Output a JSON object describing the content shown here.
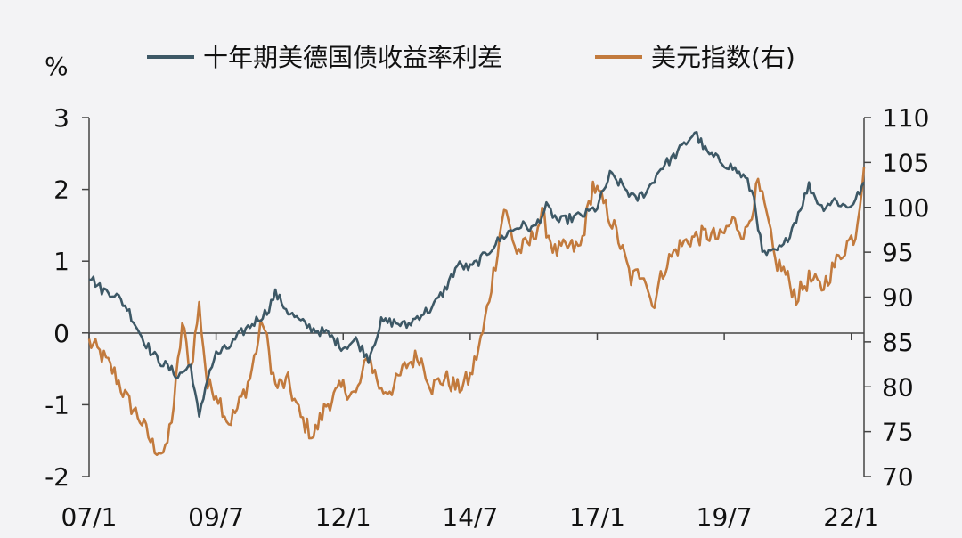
{
  "chart_data": {
    "type": "line",
    "unit_label": "%",
    "legend": "top",
    "grid": false,
    "x_ticks": [
      "07/1",
      "09/7",
      "12/1",
      "14/7",
      "17/1",
      "19/7",
      "22/1"
    ],
    "y_left_ticks": [
      "3",
      "2",
      "1",
      "0",
      "-1",
      "-2"
    ],
    "y_left_lim": [
      -2,
      3
    ],
    "y_right_ticks": [
      "110",
      "105",
      "100",
      "95",
      "90",
      "85",
      "80",
      "75",
      "70"
    ],
    "y_right_lim": [
      70,
      110
    ],
    "x_range": [
      "2007-01",
      "2022-04"
    ],
    "series": [
      {
        "name": "十年期美德国债收益率利差",
        "axis": "left",
        "color": "#3d5866",
        "points": [
          [
            "2007-01",
            0.8
          ],
          [
            "2007-04",
            0.6
          ],
          [
            "2007-07",
            0.55
          ],
          [
            "2007-10",
            0.35
          ],
          [
            "2008-01",
            0.0
          ],
          [
            "2008-04",
            -0.3
          ],
          [
            "2008-07",
            -0.45
          ],
          [
            "2008-10",
            -0.6
          ],
          [
            "2009-01",
            -0.45
          ],
          [
            "2009-03",
            -1.2
          ],
          [
            "2009-05",
            -0.6
          ],
          [
            "2009-07",
            -0.3
          ],
          [
            "2009-10",
            -0.2
          ],
          [
            "2010-01",
            0.0
          ],
          [
            "2010-04",
            0.15
          ],
          [
            "2010-07",
            0.3
          ],
          [
            "2010-09",
            0.55
          ],
          [
            "2010-12",
            0.3
          ],
          [
            "2011-03",
            0.15
          ],
          [
            "2011-06",
            0.05
          ],
          [
            "2011-09",
            0.0
          ],
          [
            "2012-01",
            -0.2
          ],
          [
            "2012-04",
            -0.1
          ],
          [
            "2012-07",
            -0.35
          ],
          [
            "2012-10",
            0.15
          ],
          [
            "2013-01",
            0.15
          ],
          [
            "2013-04",
            0.1
          ],
          [
            "2013-07",
            0.25
          ],
          [
            "2013-10",
            0.35
          ],
          [
            "2014-01",
            0.6
          ],
          [
            "2014-04",
            0.95
          ],
          [
            "2014-07",
            0.9
          ],
          [
            "2014-10",
            1.05
          ],
          [
            "2015-01",
            1.25
          ],
          [
            "2015-04",
            1.4
          ],
          [
            "2015-07",
            1.5
          ],
          [
            "2015-10",
            1.45
          ],
          [
            "2016-01",
            1.75
          ],
          [
            "2016-04",
            1.55
          ],
          [
            "2016-07",
            1.6
          ],
          [
            "2016-10",
            1.65
          ],
          [
            "2017-01",
            1.75
          ],
          [
            "2017-04",
            2.2
          ],
          [
            "2017-07",
            2.05
          ],
          [
            "2017-10",
            1.85
          ],
          [
            "2018-01",
            2.0
          ],
          [
            "2018-04",
            2.3
          ],
          [
            "2018-07",
            2.45
          ],
          [
            "2018-10",
            2.65
          ],
          [
            "2018-12",
            2.8
          ],
          [
            "2019-03",
            2.5
          ],
          [
            "2019-06",
            2.4
          ],
          [
            "2019-09",
            2.3
          ],
          [
            "2019-12",
            2.15
          ],
          [
            "2020-02",
            1.9
          ],
          [
            "2020-04",
            1.1
          ],
          [
            "2020-06",
            1.1
          ],
          [
            "2020-09",
            1.2
          ],
          [
            "2020-12",
            1.6
          ],
          [
            "2021-03",
            2.05
          ],
          [
            "2021-06",
            1.75
          ],
          [
            "2021-09",
            1.85
          ],
          [
            "2021-12",
            1.75
          ],
          [
            "2022-02",
            1.85
          ],
          [
            "2022-04",
            2.1
          ]
        ]
      },
      {
        "name": "美元指数(右)",
        "axis": "right",
        "color": "#c27a3d",
        "points": [
          [
            "2007-01",
            85
          ],
          [
            "2007-04",
            83.5
          ],
          [
            "2007-07",
            81.5
          ],
          [
            "2007-10",
            78.5
          ],
          [
            "2008-01",
            76.5
          ],
          [
            "2008-04",
            73.5
          ],
          [
            "2008-07",
            72.5
          ],
          [
            "2008-09",
            78
          ],
          [
            "2008-11",
            87
          ],
          [
            "2009-01",
            82
          ],
          [
            "2009-03",
            89
          ],
          [
            "2009-05",
            80
          ],
          [
            "2009-07",
            79.5
          ],
          [
            "2009-10",
            76
          ],
          [
            "2009-12",
            77.5
          ],
          [
            "2010-03",
            81
          ],
          [
            "2010-06",
            87.5
          ],
          [
            "2010-09",
            80
          ],
          [
            "2010-12",
            80.5
          ],
          [
            "2011-03",
            76.5
          ],
          [
            "2011-06",
            74.5
          ],
          [
            "2011-09",
            78
          ],
          [
            "2012-01",
            80
          ],
          [
            "2012-04",
            79
          ],
          [
            "2012-07",
            83.5
          ],
          [
            "2012-10",
            79.5
          ],
          [
            "2013-01",
            80
          ],
          [
            "2013-04",
            82.5
          ],
          [
            "2013-07",
            83.5
          ],
          [
            "2013-10",
            80
          ],
          [
            "2014-01",
            81
          ],
          [
            "2014-04",
            79.8
          ],
          [
            "2014-07",
            81
          ],
          [
            "2014-10",
            86
          ],
          [
            "2015-01",
            94
          ],
          [
            "2015-03",
            100
          ],
          [
            "2015-06",
            95
          ],
          [
            "2015-09",
            96
          ],
          [
            "2015-12",
            99
          ],
          [
            "2016-03",
            95
          ],
          [
            "2016-06",
            95.5
          ],
          [
            "2016-09",
            95.5
          ],
          [
            "2016-12",
            102.5
          ],
          [
            "2017-03",
            100
          ],
          [
            "2017-06",
            96.5
          ],
          [
            "2017-09",
            92
          ],
          [
            "2017-12",
            93
          ],
          [
            "2018-02",
            89
          ],
          [
            "2018-05",
            93.5
          ],
          [
            "2018-08",
            95.5
          ],
          [
            "2018-11",
            96.5
          ],
          [
            "2019-03",
            97
          ],
          [
            "2019-06",
            96.5
          ],
          [
            "2019-09",
            98.5
          ],
          [
            "2019-12",
            97
          ],
          [
            "2020-03",
            102.5
          ],
          [
            "2020-05",
            99
          ],
          [
            "2020-07",
            94
          ],
          [
            "2020-09",
            93
          ],
          [
            "2020-12",
            90
          ],
          [
            "2021-03",
            92
          ],
          [
            "2021-06",
            91
          ],
          [
            "2021-09",
            93.5
          ],
          [
            "2021-12",
            96
          ],
          [
            "2022-02",
            97
          ],
          [
            "2022-04",
            104.5
          ]
        ]
      }
    ]
  }
}
